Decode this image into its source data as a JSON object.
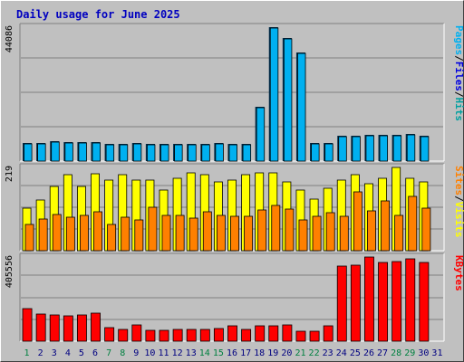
{
  "title": "Daily usage for June 2025",
  "colors": {
    "hits": "#00a0a0",
    "files": "#0000e0",
    "pages": "#00b0f0",
    "visits": "#ffff00",
    "sites": "#ff8000",
    "kbytes": "#ff0000",
    "weekend_label": "#008040",
    "weekday_label": "#000080"
  },
  "chart_data": [
    {
      "type": "bar",
      "panel": "hits-files-pages",
      "ylabel_parts": [
        "Pages",
        "/",
        "Files",
        "/",
        "Hits"
      ],
      "max_label": "44086",
      "ylim": [
        0,
        44086
      ],
      "categories": [
        "1",
        "2",
        "3",
        "4",
        "5",
        "6",
        "7",
        "8",
        "9",
        "10",
        "11",
        "12",
        "13",
        "14",
        "15",
        "16",
        "17",
        "18",
        "19",
        "20",
        "21",
        "22",
        "23",
        "24",
        "25",
        "26",
        "27",
        "28",
        "29",
        "30",
        "31"
      ],
      "series": [
        {
          "name": "Hits",
          "values": [
            6100,
            6000,
            6500,
            6300,
            6300,
            6200,
            5600,
            5600,
            5900,
            5800,
            5600,
            5800,
            5600,
            5700,
            5900,
            5700,
            5700,
            17900,
            44086,
            40500,
            35700,
            5900,
            6000,
            8400,
            8400,
            8700,
            8500,
            8700,
            9000,
            8300,
            null
          ]
        },
        {
          "name": "Files",
          "values": [
            6100,
            6000,
            6500,
            6300,
            6300,
            6200,
            5600,
            5600,
            5900,
            5800,
            5600,
            5800,
            5600,
            5700,
            5900,
            5700,
            5700,
            17900,
            44086,
            40500,
            35700,
            5900,
            6000,
            8400,
            8400,
            8700,
            8500,
            8700,
            9000,
            8300,
            null
          ]
        },
        {
          "name": "Pages",
          "values": [
            6100,
            6000,
            6500,
            6300,
            6300,
            6200,
            5600,
            5600,
            5900,
            5800,
            5600,
            5800,
            5600,
            5700,
            5900,
            5700,
            5700,
            17900,
            44086,
            40500,
            35700,
            5900,
            6000,
            8400,
            8400,
            8700,
            8500,
            8700,
            9000,
            8300,
            null
          ]
        }
      ],
      "grid": true
    },
    {
      "type": "bar",
      "panel": "visits-sites",
      "ylabel_parts": [
        "Sites",
        "/",
        "Visits"
      ],
      "max_label": "219",
      "ylim": [
        0,
        219
      ],
      "categories": [
        "1",
        "2",
        "3",
        "4",
        "5",
        "6",
        "7",
        "8",
        "9",
        "10",
        "11",
        "12",
        "13",
        "14",
        "15",
        "16",
        "17",
        "18",
        "19",
        "20",
        "21",
        "22",
        "23",
        "24",
        "25",
        "26",
        "27",
        "28",
        "29",
        "30",
        "31"
      ],
      "series": [
        {
          "name": "Visits",
          "values": [
            112,
            133,
            168,
            200,
            170,
            202,
            185,
            200,
            185,
            185,
            160,
            190,
            205,
            200,
            180,
            185,
            200,
            205,
            205,
            180,
            160,
            135,
            165,
            185,
            200,
            175,
            190,
            219,
            190,
            180,
            null
          ]
        },
        {
          "name": "Sites",
          "values": [
            69,
            84,
            95,
            89,
            92,
            103,
            70,
            88,
            80,
            115,
            94,
            92,
            85,
            103,
            93,
            90,
            90,
            106,
            120,
            109,
            82,
            90,
            101,
            90,
            155,
            105,
            130,
            93,
            143,
            113,
            null
          ]
        }
      ],
      "grid": true
    },
    {
      "type": "bar",
      "panel": "kbytes",
      "ylabel_parts": [
        "KBytes"
      ],
      "max_label": "405556",
      "ylim": [
        0,
        405556
      ],
      "categories": [
        "1",
        "2",
        "3",
        "4",
        "5",
        "6",
        "7",
        "8",
        "9",
        "10",
        "11",
        "12",
        "13",
        "14",
        "15",
        "16",
        "17",
        "18",
        "19",
        "20",
        "21",
        "22",
        "23",
        "24",
        "25",
        "26",
        "27",
        "28",
        "29",
        "30",
        "31"
      ],
      "series": [
        {
          "name": "KBytes",
          "values": [
            155000,
            132000,
            127000,
            122000,
            125000,
            135000,
            66000,
            56000,
            77000,
            54000,
            53000,
            58000,
            57000,
            57000,
            61000,
            76000,
            58000,
            72000,
            72000,
            80000,
            48000,
            48000,
            73000,
            360000,
            365000,
            405556,
            378000,
            385000,
            395000,
            380000,
            null
          ]
        }
      ],
      "grid": true
    }
  ],
  "x_labels": [
    {
      "text": "1",
      "weekend": true
    },
    {
      "text": "2",
      "weekend": false
    },
    {
      "text": "3",
      "weekend": false
    },
    {
      "text": "4",
      "weekend": false
    },
    {
      "text": "5",
      "weekend": false
    },
    {
      "text": "6",
      "weekend": false
    },
    {
      "text": "7",
      "weekend": true
    },
    {
      "text": "8",
      "weekend": true
    },
    {
      "text": "9",
      "weekend": false
    },
    {
      "text": "10",
      "weekend": false
    },
    {
      "text": "11",
      "weekend": false
    },
    {
      "text": "12",
      "weekend": false
    },
    {
      "text": "13",
      "weekend": false
    },
    {
      "text": "14",
      "weekend": true
    },
    {
      "text": "15",
      "weekend": true
    },
    {
      "text": "16",
      "weekend": false
    },
    {
      "text": "17",
      "weekend": false
    },
    {
      "text": "18",
      "weekend": false
    },
    {
      "text": "19",
      "weekend": false
    },
    {
      "text": "20",
      "weekend": false
    },
    {
      "text": "21",
      "weekend": true
    },
    {
      "text": "22",
      "weekend": true
    },
    {
      "text": "23",
      "weekend": false
    },
    {
      "text": "24",
      "weekend": false
    },
    {
      "text": "25",
      "weekend": false
    },
    {
      "text": "26",
      "weekend": false
    },
    {
      "text": "27",
      "weekend": false
    },
    {
      "text": "28",
      "weekend": true
    },
    {
      "text": "29",
      "weekend": true
    },
    {
      "text": "30",
      "weekend": false
    },
    {
      "text": "31",
      "weekend": false
    }
  ]
}
